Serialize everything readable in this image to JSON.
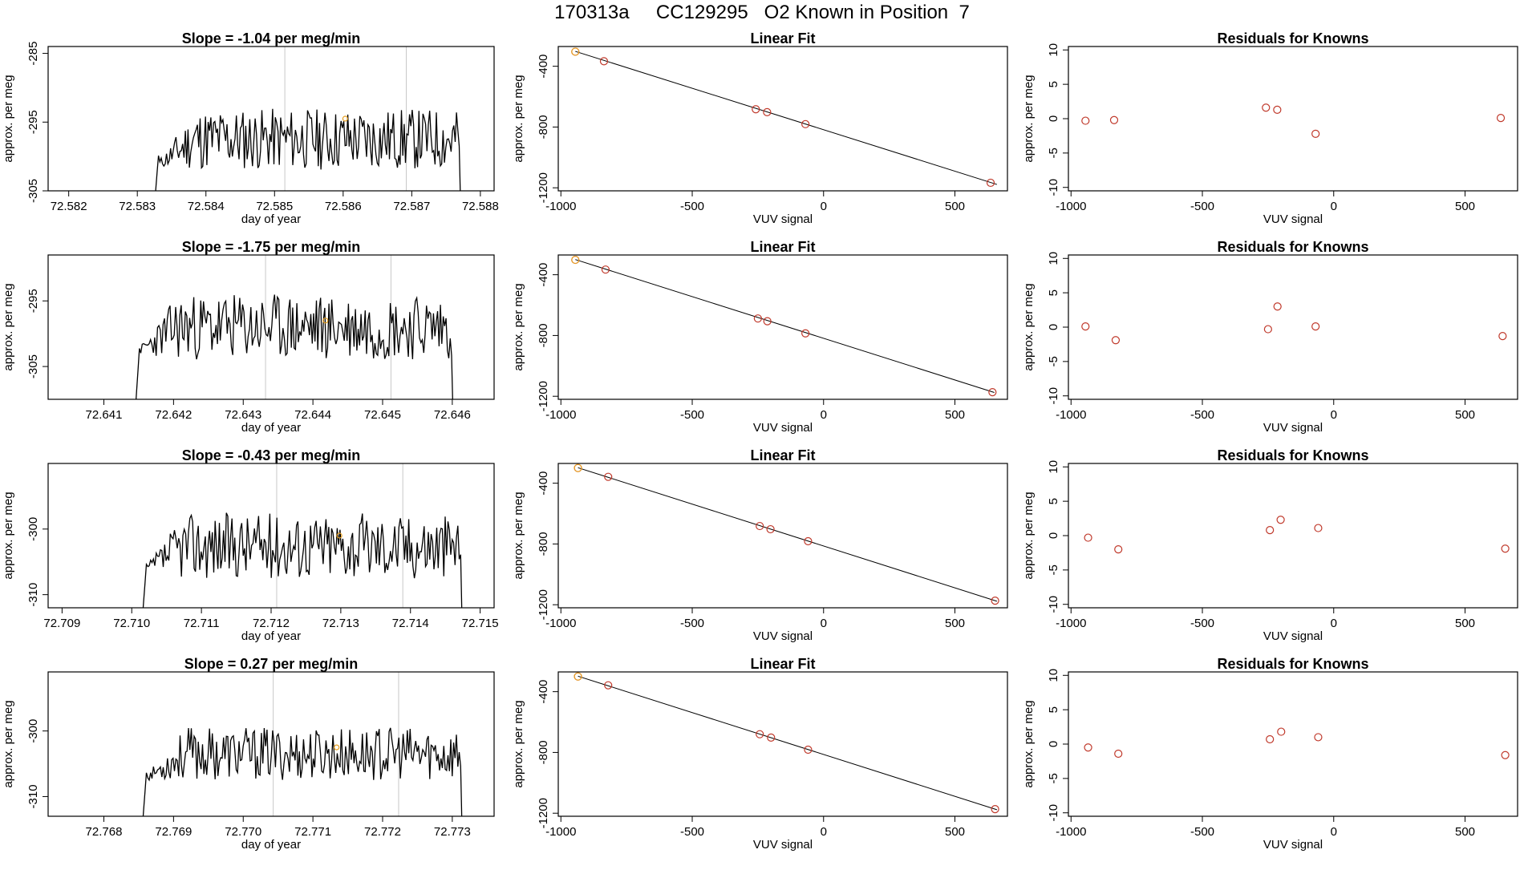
{
  "page_title": "170313a     CC129295   O2 Known in Position  7",
  "colors": {
    "trace": "#000000",
    "marker": "#e8a020",
    "residual": "#c0392b",
    "fit_point": "#c0392b",
    "vline": "#c8c8c8"
  },
  "chart_data": [
    {
      "type": "line",
      "title": "Slope =  -1.04  per meg/min",
      "xlabel": "day of year",
      "ylabel": "approx. per meg",
      "xlim": [
        72.5817,
        72.5882
      ],
      "ylim": [
        -305,
        -284
      ],
      "xticks": [
        "72.582",
        "72.583",
        "72.584",
        "72.585",
        "72.586",
        "72.587",
        "72.588"
      ],
      "xtick_values": [
        72.582,
        72.583,
        72.584,
        72.585,
        72.586,
        72.587,
        72.588
      ],
      "yticks": [
        "-305",
        "-295",
        "-285"
      ],
      "ytick_values": [
        -305,
        -295,
        -285
      ],
      "vlines": [
        72.58515,
        72.58692
      ],
      "marker": [
        72.58603,
        -294.5
      ],
      "trace_start": 72.58325,
      "trace_end": 72.58775,
      "trace_base": -297.5,
      "trace_amp": 4.5,
      "seed": 11
    },
    {
      "type": "scatter",
      "title": "Linear Fit",
      "xlabel": "VUV signal",
      "ylabel": "approx. per meg",
      "xlim": [
        -1010,
        700
      ],
      "ylim": [
        -1220,
        -270
      ],
      "xticks": [
        "-1000",
        "-500",
        "0",
        "500"
      ],
      "xtick_values": [
        -1000,
        -500,
        0,
        500
      ],
      "yticks": [
        "-1200",
        "-800",
        "-400"
      ],
      "ytick_values": [
        -1200,
        -800,
        -400
      ],
      "points": [
        [
          -945,
          -304
        ],
        [
          -836,
          -367
        ],
        [
          -258,
          -683
        ],
        [
          -215,
          -702
        ],
        [
          -69,
          -781
        ],
        [
          636,
          -1167
        ]
      ],
      "highlight_index": 0,
      "fit_line": [
        [
          -945,
          -302
        ],
        [
          660,
          -1178
        ]
      ]
    },
    {
      "type": "scatter",
      "title": "Residuals for Knowns",
      "xlabel": "VUV signal",
      "ylabel": "approx. per meg",
      "xlim": [
        -1010,
        700
      ],
      "ylim": [
        -10.5,
        10.5
      ],
      "xticks": [
        "-1000",
        "-500",
        "0",
        "500"
      ],
      "xtick_values": [
        -1000,
        -500,
        0,
        500
      ],
      "yticks": [
        "-10",
        "-5",
        "0",
        "5",
        "10"
      ],
      "ytick_values": [
        -10,
        -5,
        0,
        5,
        10
      ],
      "points": [
        [
          -945,
          -0.3
        ],
        [
          -836,
          -0.2
        ],
        [
          -258,
          1.6
        ],
        [
          -215,
          1.3
        ],
        [
          -69,
          -2.2
        ],
        [
          636,
          0.1
        ]
      ]
    },
    {
      "type": "line",
      "title": "Slope =  -1.75  per meg/min",
      "xlabel": "day of year",
      "ylabel": "approx. per meg",
      "xlim": [
        72.6402,
        72.6466
      ],
      "ylim": [
        -310,
        -288
      ],
      "xticks": [
        "72.641",
        "72.642",
        "72.643",
        "72.644",
        "72.645",
        "72.646"
      ],
      "xtick_values": [
        72.641,
        72.642,
        72.643,
        72.644,
        72.645,
        72.646
      ],
      "yticks": [
        "-305",
        "-295"
      ],
      "ytick_values": [
        -305,
        -295
      ],
      "vlines": [
        72.64332,
        72.64512
      ],
      "marker": [
        72.64418,
        -298
      ],
      "trace_start": 72.64145,
      "trace_end": 72.64605,
      "trace_base": -299,
      "trace_amp": 5,
      "seed": 23
    },
    {
      "type": "scatter",
      "title": "Linear Fit",
      "xlabel": "VUV signal",
      "ylabel": "approx. per meg",
      "xlim": [
        -1010,
        700
      ],
      "ylim": [
        -1220,
        -270
      ],
      "xticks": [
        "-1000",
        "-500",
        "0",
        "500"
      ],
      "xtick_values": [
        -1000,
        -500,
        0,
        500
      ],
      "yticks": [
        "-1200",
        "-800",
        "-400"
      ],
      "ytick_values": [
        -1200,
        -800,
        -400
      ],
      "points": [
        [
          -945,
          -302
        ],
        [
          -830,
          -366
        ],
        [
          -250,
          -688
        ],
        [
          -214,
          -706
        ],
        [
          -69,
          -786
        ],
        [
          643,
          -1173
        ]
      ],
      "highlight_index": 0,
      "fit_line": [
        [
          -945,
          -300
        ],
        [
          650,
          -1175
        ]
      ]
    },
    {
      "type": "scatter",
      "title": "Residuals for Knowns",
      "xlabel": "VUV signal",
      "ylabel": "approx. per meg",
      "xlim": [
        -1010,
        700
      ],
      "ylim": [
        -10.5,
        10.5
      ],
      "xticks": [
        "-1000",
        "-500",
        "0",
        "500"
      ],
      "xtick_values": [
        -1000,
        -500,
        0,
        500
      ],
      "yticks": [
        "-10",
        "-5",
        "0",
        "5",
        "10"
      ],
      "ytick_values": [
        -10,
        -5,
        0,
        5,
        10
      ],
      "points": [
        [
          -945,
          0.1
        ],
        [
          -830,
          -1.9
        ],
        [
          -250,
          -0.3
        ],
        [
          -214,
          3.0
        ],
        [
          -69,
          0.1
        ],
        [
          643,
          -1.3
        ]
      ]
    },
    {
      "type": "line",
      "title": "Slope =  -0.43  per meg/min",
      "xlabel": "day of year",
      "ylabel": "approx. per meg",
      "xlim": [
        72.7088,
        72.7152
      ],
      "ylim": [
        -312,
        -290
      ],
      "xticks": [
        "72.709",
        "72.710",
        "72.711",
        "72.712",
        "72.713",
        "72.714",
        "72.715"
      ],
      "xtick_values": [
        72.709,
        72.71,
        72.711,
        72.712,
        72.713,
        72.714,
        72.715
      ],
      "yticks": [
        "-310",
        "-300"
      ],
      "ytick_values": [
        -310,
        -300
      ],
      "vlines": [
        72.71208,
        72.71389
      ],
      "marker": [
        72.71298,
        -301
      ],
      "trace_start": 72.71015,
      "trace_end": 72.71478,
      "trace_base": -302.5,
      "trace_amp": 5,
      "seed": 37
    },
    {
      "type": "scatter",
      "title": "Linear Fit",
      "xlabel": "VUV signal",
      "ylabel": "approx. per meg",
      "xlim": [
        -1010,
        700
      ],
      "ylim": [
        -1220,
        -270
      ],
      "xticks": [
        "-1000",
        "-500",
        "0",
        "500"
      ],
      "xtick_values": [
        -1000,
        -500,
        0,
        500
      ],
      "yticks": [
        "-1200",
        "-800",
        "-400"
      ],
      "ytick_values": [
        -1200,
        -800,
        -400
      ],
      "points": [
        [
          -935,
          -300
        ],
        [
          -820,
          -358
        ],
        [
          -243,
          -682
        ],
        [
          -202,
          -703
        ],
        [
          -59,
          -782
        ],
        [
          653,
          -1173
        ]
      ],
      "highlight_index": 0,
      "fit_line": [
        [
          -935,
          -298
        ],
        [
          660,
          -1177
        ]
      ]
    },
    {
      "type": "scatter",
      "title": "Residuals for Knowns",
      "xlabel": "VUV signal",
      "ylabel": "approx. per meg",
      "xlim": [
        -1010,
        700
      ],
      "ylim": [
        -10.5,
        10.5
      ],
      "xticks": [
        "-1000",
        "-500",
        "0",
        "500"
      ],
      "xtick_values": [
        -1000,
        -500,
        0,
        500
      ],
      "yticks": [
        "-10",
        "-5",
        "0",
        "5",
        "10"
      ],
      "ytick_values": [
        -10,
        -5,
        0,
        5,
        10
      ],
      "points": [
        [
          -935,
          -0.3
        ],
        [
          -820,
          -2.0
        ],
        [
          -243,
          0.8
        ],
        [
          -202,
          2.3
        ],
        [
          -59,
          1.1
        ],
        [
          653,
          -1.9
        ]
      ]
    },
    {
      "type": "line",
      "title": "Slope =  0.27  per meg/min",
      "xlabel": "day of year",
      "ylabel": "approx. per meg",
      "xlim": [
        72.7672,
        72.7736
      ],
      "ylim": [
        -313,
        -291
      ],
      "xticks": [
        "72.768",
        "72.769",
        "72.770",
        "72.771",
        "72.772",
        "72.773"
      ],
      "xtick_values": [
        72.768,
        72.769,
        72.77,
        72.771,
        72.772,
        72.773
      ],
      "yticks": [
        "-310",
        "-300"
      ],
      "ytick_values": [
        -310,
        -300
      ],
      "vlines": [
        72.77043,
        72.77223
      ],
      "marker": [
        72.77134,
        -302.5
      ],
      "trace_start": 72.76855,
      "trace_end": 72.77318,
      "trace_base": -303.5,
      "trace_amp": 4,
      "seed": 53
    },
    {
      "type": "scatter",
      "title": "Linear Fit",
      "xlabel": "VUV signal",
      "ylabel": "approx. per meg",
      "xlim": [
        -1010,
        700
      ],
      "ylim": [
        -1220,
        -270
      ],
      "xticks": [
        "-1000",
        "-500",
        "0",
        "500"
      ],
      "xtick_values": [
        -1000,
        -500,
        0,
        500
      ],
      "yticks": [
        "-1200",
        "-800",
        "-400"
      ],
      "ytick_values": [
        -1200,
        -800,
        -400
      ],
      "points": [
        [
          -935,
          -300
        ],
        [
          -820,
          -358
        ],
        [
          -243,
          -680
        ],
        [
          -200,
          -702
        ],
        [
          -59,
          -782
        ],
        [
          653,
          -1173
        ]
      ],
      "highlight_index": 0,
      "fit_line": [
        [
          -935,
          -298
        ],
        [
          660,
          -1177
        ]
      ]
    },
    {
      "type": "scatter",
      "title": "Residuals for Knowns",
      "xlabel": "VUV signal",
      "ylabel": "approx. per meg",
      "xlim": [
        -1010,
        700
      ],
      "ylim": [
        -10.5,
        10.5
      ],
      "xticks": [
        "-1000",
        "-500",
        "0",
        "500"
      ],
      "xtick_values": [
        -1000,
        -500,
        0,
        500
      ],
      "yticks": [
        "-10",
        "-5",
        "0",
        "5",
        "10"
      ],
      "ytick_values": [
        -10,
        -5,
        0,
        5,
        10
      ],
      "points": [
        [
          -935,
          -0.5
        ],
        [
          -820,
          -1.4
        ],
        [
          -243,
          0.7
        ],
        [
          -200,
          1.8
        ],
        [
          -59,
          1.0
        ],
        [
          653,
          -1.6
        ]
      ]
    }
  ]
}
